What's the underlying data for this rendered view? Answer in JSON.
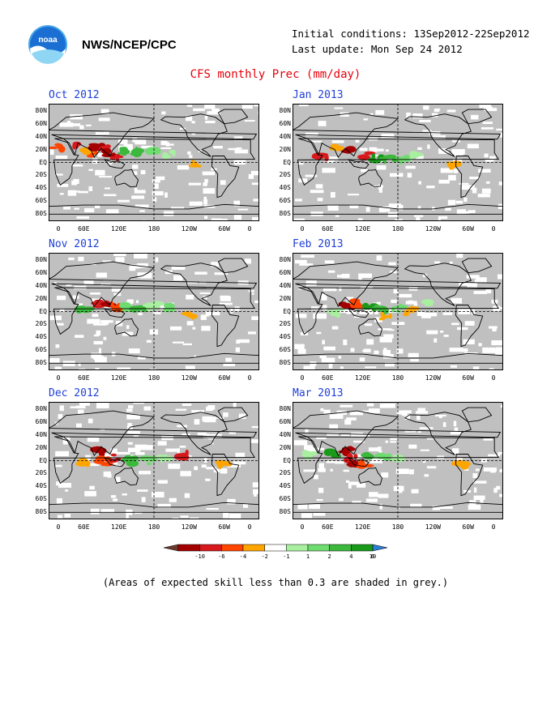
{
  "header": {
    "logo_text": "noaa",
    "org": "NWS/NCEP/CPC",
    "initial_conditions": "Initial conditions: 13Sep2012-22Sep2012",
    "last_update": "Last update: Mon Sep 24 2012",
    "title": "CFS monthly Prec (mm/day)"
  },
  "panels": [
    {
      "id": "oct",
      "title": "Oct 2012"
    },
    {
      "id": "jan",
      "title": "Jan 2013"
    },
    {
      "id": "nov",
      "title": "Nov 2012"
    },
    {
      "id": "feb",
      "title": "Feb 2013"
    },
    {
      "id": "dec",
      "title": "Dec 2012"
    },
    {
      "id": "mar",
      "title": "Mar 2013"
    }
  ],
  "axes": {
    "lat_ticks": [
      "80N",
      "60N",
      "40N",
      "20N",
      "EQ",
      "20S",
      "40S",
      "60S",
      "80S"
    ],
    "lon_ticks": [
      "0",
      "60E",
      "120E",
      "180",
      "120W",
      "60W",
      "0"
    ]
  },
  "colorbar": {
    "labels": [
      "-10",
      "-6",
      "-4",
      "-2",
      "-1",
      "1",
      "2",
      "4",
      "6",
      "10"
    ],
    "colors": [
      "#6b3a2a",
      "#a50000",
      "#d7191c",
      "#ff4500",
      "#ffa500",
      "#ffffff",
      "#a8f0a0",
      "#6fdc6f",
      "#3cb83c",
      "#1a9a1a",
      "#2c7fd8"
    ]
  },
  "note": "(Areas of expected skill less than 0.3 are shaded in grey.)"
}
